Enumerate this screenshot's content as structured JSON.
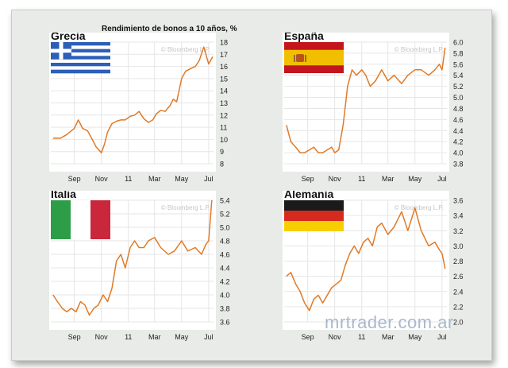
{
  "page": {
    "main_title": "Rendimiento de bonos a 10 años, %",
    "watermark": "mrtrader.com.ar",
    "source_label": "© Bloomberg L.P."
  },
  "colors": {
    "line": "#e07a26",
    "grid": "#e6e6e6",
    "panel": "#ffffff",
    "frame": "#e8ebe7"
  },
  "chart_data": [
    {
      "type": "line",
      "title": "Grecia",
      "flag": "greece-flag",
      "x_ticks": [
        "Sep",
        "Nov",
        "11",
        "Mar",
        "May",
        "Jul"
      ],
      "y_ticks": [
        8,
        9,
        10,
        11,
        12,
        13,
        14,
        15,
        16,
        17,
        18
      ],
      "ylim": [
        8,
        18
      ],
      "grid": true,
      "series": [
        {
          "x": [
            "2010-07-15",
            "2010-08-01",
            "2010-08-15",
            "2010-09-01",
            "2010-09-10",
            "2010-09-20",
            "2010-10-01",
            "2010-10-10",
            "2010-10-20",
            "2010-11-01",
            "2010-11-08",
            "2010-11-15",
            "2010-11-25",
            "2010-12-05",
            "2010-12-15",
            "2010-12-25",
            "2011-01-05",
            "2011-01-15",
            "2011-01-25",
            "2011-02-05",
            "2011-02-15",
            "2011-02-25",
            "2011-03-05",
            "2011-03-15",
            "2011-03-25",
            "2011-04-05",
            "2011-04-12",
            "2011-04-20",
            "2011-05-01",
            "2011-05-10",
            "2011-05-20",
            "2011-06-01",
            "2011-06-10",
            "2011-06-20",
            "2011-07-01",
            "2011-07-10"
          ],
          "values": [
            10.1,
            10.1,
            10.4,
            10.9,
            11.6,
            10.9,
            10.7,
            10.1,
            9.4,
            8.9,
            9.6,
            10.6,
            11.3,
            11.5,
            11.6,
            11.6,
            11.9,
            12.0,
            12.3,
            11.7,
            11.4,
            11.6,
            12.1,
            12.4,
            12.3,
            12.8,
            13.3,
            13.1,
            15.0,
            15.6,
            15.8,
            16.0,
            16.5,
            17.6,
            16.2,
            16.8
          ]
        }
      ]
    },
    {
      "type": "line",
      "title": "España",
      "flag": "spain-flag",
      "x_ticks": [
        "Sep",
        "Nov",
        "11",
        "Mar",
        "May",
        "Jul"
      ],
      "y_ticks": [
        3.8,
        4.0,
        4.2,
        4.4,
        4.6,
        4.8,
        5.0,
        5.2,
        5.4,
        5.6,
        5.8,
        6.0
      ],
      "ylim": [
        3.8,
        6.0
      ],
      "grid": true,
      "series": [
        {
          "x": [
            "2010-07-15",
            "2010-07-25",
            "2010-08-05",
            "2010-08-15",
            "2010-08-25",
            "2010-09-05",
            "2010-09-15",
            "2010-09-25",
            "2010-10-05",
            "2010-10-15",
            "2010-10-25",
            "2010-11-01",
            "2010-11-10",
            "2010-11-20",
            "2010-11-30",
            "2010-12-10",
            "2010-12-20",
            "2011-01-01",
            "2011-01-10",
            "2011-01-20",
            "2011-02-01",
            "2011-02-15",
            "2011-03-01",
            "2011-03-15",
            "2011-04-01",
            "2011-04-15",
            "2011-05-01",
            "2011-05-15",
            "2011-06-01",
            "2011-06-15",
            "2011-06-25",
            "2011-07-01",
            "2011-07-08"
          ],
          "values": [
            4.5,
            4.2,
            4.1,
            4.0,
            4.0,
            4.05,
            4.1,
            4.0,
            4.0,
            4.05,
            4.1,
            4.0,
            4.05,
            4.5,
            5.2,
            5.5,
            5.4,
            5.5,
            5.4,
            5.2,
            5.3,
            5.5,
            5.3,
            5.4,
            5.25,
            5.4,
            5.5,
            5.5,
            5.4,
            5.5,
            5.6,
            5.5,
            5.9
          ]
        }
      ]
    },
    {
      "type": "line",
      "title": "Italia",
      "flag": "italy-flag",
      "x_ticks": [
        "Sep",
        "Nov",
        "11",
        "Mar",
        "May",
        "Jul"
      ],
      "y_ticks": [
        3.6,
        3.8,
        4.0,
        4.2,
        4.4,
        4.6,
        4.8,
        5.0,
        5.2,
        5.4
      ],
      "ylim": [
        3.6,
        5.4
      ],
      "grid": true,
      "series": [
        {
          "x": [
            "2010-07-15",
            "2010-07-25",
            "2010-08-05",
            "2010-08-15",
            "2010-08-25",
            "2010-09-05",
            "2010-09-15",
            "2010-09-25",
            "2010-10-05",
            "2010-10-15",
            "2010-10-25",
            "2010-11-05",
            "2010-11-15",
            "2010-11-25",
            "2010-12-05",
            "2010-12-15",
            "2010-12-25",
            "2011-01-05",
            "2011-01-15",
            "2011-01-25",
            "2011-02-05",
            "2011-02-15",
            "2011-03-01",
            "2011-03-15",
            "2011-04-01",
            "2011-04-15",
            "2011-05-01",
            "2011-05-15",
            "2011-06-01",
            "2011-06-15",
            "2011-06-25",
            "2011-07-01",
            "2011-07-08"
          ],
          "values": [
            4.0,
            3.9,
            3.8,
            3.75,
            3.8,
            3.75,
            3.9,
            3.85,
            3.7,
            3.8,
            3.85,
            4.0,
            3.9,
            4.1,
            4.5,
            4.6,
            4.4,
            4.7,
            4.8,
            4.7,
            4.7,
            4.8,
            4.85,
            4.7,
            4.6,
            4.65,
            4.8,
            4.65,
            4.7,
            4.6,
            4.75,
            4.8,
            5.4
          ]
        }
      ]
    },
    {
      "type": "line",
      "title": "Alemania",
      "flag": "germany-flag",
      "x_ticks": [
        "Sep",
        "Nov",
        "11",
        "Mar",
        "May",
        "Jul"
      ],
      "y_ticks": [
        2.0,
        2.2,
        2.4,
        2.6,
        2.8,
        3.0,
        3.2,
        3.4,
        3.6
      ],
      "ylim": [
        2.0,
        3.6
      ],
      "grid": true,
      "series": [
        {
          "x": [
            "2010-07-15",
            "2010-07-25",
            "2010-08-05",
            "2010-08-15",
            "2010-08-25",
            "2010-09-05",
            "2010-09-15",
            "2010-09-25",
            "2010-10-05",
            "2010-10-15",
            "2010-10-25",
            "2010-11-05",
            "2010-11-15",
            "2010-11-25",
            "2010-12-05",
            "2010-12-15",
            "2010-12-25",
            "2011-01-05",
            "2011-01-15",
            "2011-01-25",
            "2011-02-05",
            "2011-02-15",
            "2011-03-01",
            "2011-03-15",
            "2011-04-01",
            "2011-04-15",
            "2011-05-01",
            "2011-05-15",
            "2011-06-01",
            "2011-06-15",
            "2011-06-25",
            "2011-07-01",
            "2011-07-08"
          ],
          "values": [
            2.6,
            2.65,
            2.5,
            2.4,
            2.25,
            2.15,
            2.3,
            2.35,
            2.25,
            2.35,
            2.45,
            2.5,
            2.55,
            2.75,
            2.9,
            3.0,
            2.9,
            3.05,
            3.1,
            3.0,
            3.25,
            3.3,
            3.15,
            3.25,
            3.45,
            3.2,
            3.5,
            3.2,
            3.0,
            3.05,
            2.95,
            2.9,
            2.7
          ]
        }
      ]
    }
  ]
}
